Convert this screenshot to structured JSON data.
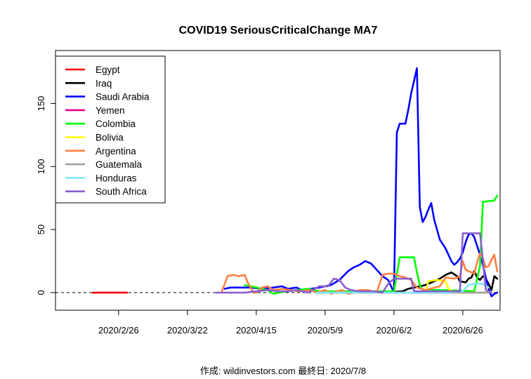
{
  "chart_data": {
    "type": "line",
    "title": "COVID19 SeriousCriticalChange MA7",
    "footer": "作成: wildinvestors.com 最終日: 2020/7/8",
    "x_start": "2020-02-15",
    "x_days": 145,
    "xlim": [
      -6,
      149
    ],
    "ylim": [
      -14,
      192
    ],
    "x_ticks": [
      {
        "day": 16,
        "label": "2020/2/26"
      },
      {
        "day": 40,
        "label": "2020/3/22"
      },
      {
        "day": 64,
        "label": "2020/4/15"
      },
      {
        "day": 88,
        "label": "2020/5/9"
      },
      {
        "day": 112,
        "label": "2020/6/2"
      },
      {
        "day": 136,
        "label": "2020/6/26"
      }
    ],
    "y_ticks": [
      0,
      50,
      100,
      150
    ],
    "reference_line": 0,
    "legend": [
      "Egypt",
      "Iraq",
      "Saudi Arabia",
      "Yemen",
      "Colombia",
      "Bolivia",
      "Argentina",
      "Guatemala",
      "Honduras",
      "South Africa"
    ],
    "series": [
      {
        "name": "Egypt",
        "color": "#ff0000",
        "points": [
          [
            7,
            0
          ],
          [
            19,
            0
          ]
        ]
      },
      {
        "name": "Iraq",
        "color": "#000000",
        "points": [
          [
            85,
            0
          ],
          [
            108,
            0
          ],
          [
            115,
            1
          ],
          [
            117,
            3
          ],
          [
            119,
            4
          ],
          [
            121,
            5
          ],
          [
            123,
            6
          ],
          [
            125,
            8
          ],
          [
            127,
            10
          ],
          [
            128,
            11
          ],
          [
            130,
            14
          ],
          [
            132,
            16
          ],
          [
            134,
            13
          ],
          [
            135,
            9
          ],
          [
            137,
            8
          ],
          [
            138,
            11
          ],
          [
            139,
            12
          ],
          [
            140,
            17
          ],
          [
            141,
            12
          ],
          [
            142,
            10
          ],
          [
            143,
            13
          ],
          [
            144,
            11
          ],
          [
            145,
            7
          ],
          [
            146,
            2
          ],
          [
            147,
            13
          ],
          [
            148,
            11
          ]
        ]
      },
      {
        "name": "Saudi Arabia",
        "color": "#0000ff",
        "points": [
          [
            53,
            3
          ],
          [
            55,
            4
          ],
          [
            58,
            4
          ],
          [
            62,
            4
          ],
          [
            66,
            3
          ],
          [
            70,
            4
          ],
          [
            73,
            5
          ],
          [
            75,
            3
          ],
          [
            78,
            4
          ],
          [
            80,
            2
          ],
          [
            83,
            3
          ],
          [
            86,
            4
          ],
          [
            88,
            5
          ],
          [
            90,
            6
          ],
          [
            93,
            10
          ],
          [
            96,
            17
          ],
          [
            98,
            20
          ],
          [
            100,
            22
          ],
          [
            102,
            25
          ],
          [
            104,
            23
          ],
          [
            106,
            18
          ],
          [
            108,
            13
          ],
          [
            110,
            10
          ],
          [
            112,
            0
          ],
          [
            113,
            127
          ],
          [
            114,
            134
          ],
          [
            116,
            134
          ],
          [
            117,
            145
          ],
          [
            118,
            158
          ],
          [
            120,
            178
          ],
          [
            121,
            68
          ],
          [
            122,
            56
          ],
          [
            123,
            60
          ],
          [
            124,
            66
          ],
          [
            125,
            71
          ],
          [
            126,
            58
          ],
          [
            128,
            42
          ],
          [
            130,
            35
          ],
          [
            131,
            30
          ],
          [
            132,
            25
          ],
          [
            133,
            22
          ],
          [
            134,
            24
          ],
          [
            135,
            27
          ],
          [
            136,
            32
          ],
          [
            137,
            40
          ],
          [
            138,
            46
          ],
          [
            139,
            47
          ],
          [
            140,
            44
          ],
          [
            141,
            37
          ],
          [
            142,
            30
          ],
          [
            143,
            22
          ],
          [
            144,
            12
          ],
          [
            145,
            3
          ],
          [
            146,
            -3
          ],
          [
            147,
            -1
          ],
          [
            148,
            0
          ]
        ]
      },
      {
        "name": "Yemen",
        "color": "#e8008f",
        "points": [
          [
            97,
            0
          ],
          [
            130,
            0
          ]
        ]
      },
      {
        "name": "Colombia",
        "color": "#00ff00",
        "points": [
          [
            60,
            6
          ],
          [
            62,
            5
          ],
          [
            64,
            4
          ],
          [
            66,
            3
          ],
          [
            68,
            2
          ],
          [
            70,
            -1
          ],
          [
            72,
            0
          ],
          [
            78,
            2
          ],
          [
            82,
            3
          ],
          [
            86,
            1
          ],
          [
            90,
            1
          ],
          [
            93,
            1
          ],
          [
            112,
            1
          ],
          [
            114,
            28
          ],
          [
            119,
            28
          ],
          [
            120,
            16
          ],
          [
            121,
            6
          ],
          [
            122,
            2
          ],
          [
            130,
            2
          ],
          [
            140,
            1
          ],
          [
            142,
            21
          ],
          [
            143,
            72
          ],
          [
            147,
            73
          ],
          [
            148,
            77
          ]
        ]
      },
      {
        "name": "Bolivia",
        "color": "#ffff00",
        "points": [
          [
            93,
            0
          ],
          [
            123,
            0
          ],
          [
            124,
            9
          ],
          [
            127,
            10
          ],
          [
            130,
            9
          ],
          [
            131,
            3
          ],
          [
            133,
            0
          ],
          [
            145,
            0
          ]
        ]
      },
      {
        "name": "Argentina",
        "color": "#ff8040",
        "points": [
          [
            52,
            1
          ],
          [
            54,
            13
          ],
          [
            56,
            14
          ],
          [
            58,
            13
          ],
          [
            60,
            14
          ],
          [
            61,
            8
          ],
          [
            63,
            0
          ],
          [
            64,
            0
          ],
          [
            66,
            4
          ],
          [
            68,
            5
          ],
          [
            70,
            2
          ],
          [
            73,
            3
          ],
          [
            76,
            2
          ],
          [
            79,
            1
          ],
          [
            83,
            2
          ],
          [
            85,
            0
          ],
          [
            88,
            2
          ],
          [
            90,
            -1
          ],
          [
            92,
            1
          ],
          [
            94,
            2
          ],
          [
            96,
            -1
          ],
          [
            98,
            0
          ],
          [
            100,
            2
          ],
          [
            103,
            2
          ],
          [
            106,
            0
          ],
          [
            108,
            14
          ],
          [
            110,
            15
          ],
          [
            112,
            15
          ],
          [
            114,
            13
          ],
          [
            116,
            12
          ],
          [
            118,
            10
          ],
          [
            120,
            4
          ],
          [
            123,
            2
          ],
          [
            128,
            5
          ],
          [
            130,
            12
          ],
          [
            133,
            11
          ],
          [
            135,
            13
          ],
          [
            136,
            25
          ],
          [
            137,
            18
          ],
          [
            140,
            15
          ],
          [
            141,
            24
          ],
          [
            142,
            31
          ],
          [
            143,
            27
          ],
          [
            144,
            20
          ],
          [
            145,
            21
          ],
          [
            146,
            26
          ],
          [
            147,
            30
          ],
          [
            148,
            17
          ]
        ]
      },
      {
        "name": "Guatemala",
        "color": "#a0a0a0",
        "points": [
          [
            93,
            0
          ],
          [
            145,
            0
          ]
        ]
      },
      {
        "name": "Honduras",
        "color": "#7fe8ff",
        "points": [
          [
            85,
            0
          ],
          [
            108,
            0
          ],
          [
            118,
            0
          ],
          [
            130,
            0
          ],
          [
            136,
            1
          ],
          [
            138,
            6
          ],
          [
            140,
            7
          ],
          [
            143,
            7
          ],
          [
            145,
            4
          ]
        ]
      },
      {
        "name": "South Africa",
        "color": "#8a5fcf",
        "points": [
          [
            50,
            0
          ],
          [
            54,
            0
          ],
          [
            60,
            0
          ],
          [
            64,
            1
          ],
          [
            68,
            2
          ],
          [
            72,
            1
          ],
          [
            75,
            1
          ],
          [
            78,
            2
          ],
          [
            82,
            0
          ],
          [
            86,
            5
          ],
          [
            89,
            5
          ],
          [
            91,
            11
          ],
          [
            93,
            10
          ],
          [
            95,
            4
          ],
          [
            97,
            2
          ],
          [
            100,
            1
          ],
          [
            105,
            1
          ],
          [
            108,
            0
          ],
          [
            110,
            7
          ],
          [
            112,
            11
          ],
          [
            114,
            11
          ],
          [
            118,
            11
          ],
          [
            119,
            1
          ],
          [
            121,
            1
          ],
          [
            126,
            1
          ],
          [
            135,
            1
          ],
          [
            136,
            47
          ],
          [
            142,
            47
          ],
          [
            143,
            26
          ],
          [
            144,
            2
          ],
          [
            146,
            0
          ]
        ]
      }
    ]
  }
}
